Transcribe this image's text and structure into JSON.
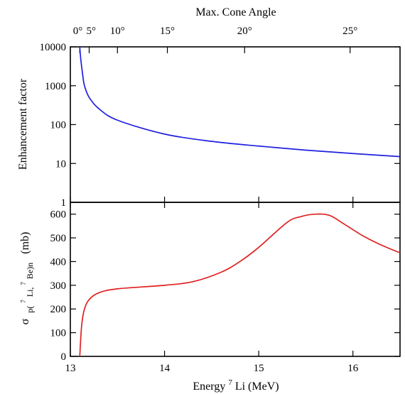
{
  "chart_data": [
    {
      "type": "line",
      "title": "",
      "xlabel": "Energy 7Li (MeV)",
      "ylabel": "Enhancement factor",
      "xlim": [
        13,
        16.5
      ],
      "ylim": [
        1,
        10000
      ],
      "yscale": "log",
      "yticks": [
        "1",
        "10",
        "100",
        "1000",
        "10000"
      ],
      "series": [
        {
          "color": "#1f1fe0",
          "x": [
            13.1,
            13.11,
            13.13,
            13.15,
            13.2,
            13.3,
            13.5,
            14.0,
            14.5,
            15.0,
            15.5,
            16.0,
            16.5
          ],
          "y": [
            10000,
            5000,
            2000,
            1000,
            500,
            260,
            130,
            57,
            37,
            28,
            22,
            18,
            15
          ]
        }
      ],
      "top_axis": {
        "label": "Max. Cone Angle",
        "ticks": [
          {
            "label": "0°",
            "energy": 13.1
          },
          {
            "label": "5°",
            "energy": 13.2
          },
          {
            "label": "10°",
            "energy": 13.5
          },
          {
            "label": "15°",
            "energy": 14.03
          },
          {
            "label": "20°",
            "energy": 14.85
          },
          {
            "label": "25°",
            "energy": 15.97
          }
        ]
      }
    },
    {
      "type": "line",
      "title": "",
      "xlabel": "Energy 7Li (MeV)",
      "ylabel": "σ p(7Li, 7Be)n (mb)",
      "xlim": [
        13,
        16.5
      ],
      "ylim": [
        0,
        650
      ],
      "xticks": [
        13,
        14,
        15,
        16
      ],
      "yticks": [
        0,
        100,
        200,
        300,
        400,
        500,
        600
      ],
      "series": [
        {
          "color": "#e02020",
          "x": [
            13.1,
            13.12,
            13.15,
            13.2,
            13.3,
            13.5,
            14.0,
            14.3,
            14.6,
            14.8,
            15.0,
            15.3,
            15.45,
            15.6,
            15.75,
            15.9,
            16.1,
            16.3,
            16.5
          ],
          "y": [
            0,
            130,
            200,
            240,
            268,
            285,
            300,
            315,
            355,
            400,
            460,
            565,
            590,
            600,
            595,
            560,
            510,
            470,
            437
          ]
        }
      ]
    }
  ],
  "labels": {
    "top_axis_title": "Max. Cone Angle",
    "top_ylabel": "Enhancement factor",
    "bottom_ylabel_sigma": "σ",
    "bottom_ylabel_sub_p": "p(",
    "bottom_ylabel_sup_7a": "7",
    "bottom_ylabel_li": "Li, ",
    "bottom_ylabel_sup_7b": "7",
    "bottom_ylabel_be": "Be)n",
    "bottom_ylabel_unit": "(mb)",
    "xlabel_energy": "Energy ",
    "xlabel_sup": "7",
    "xlabel_rest": "Li (MeV)"
  }
}
